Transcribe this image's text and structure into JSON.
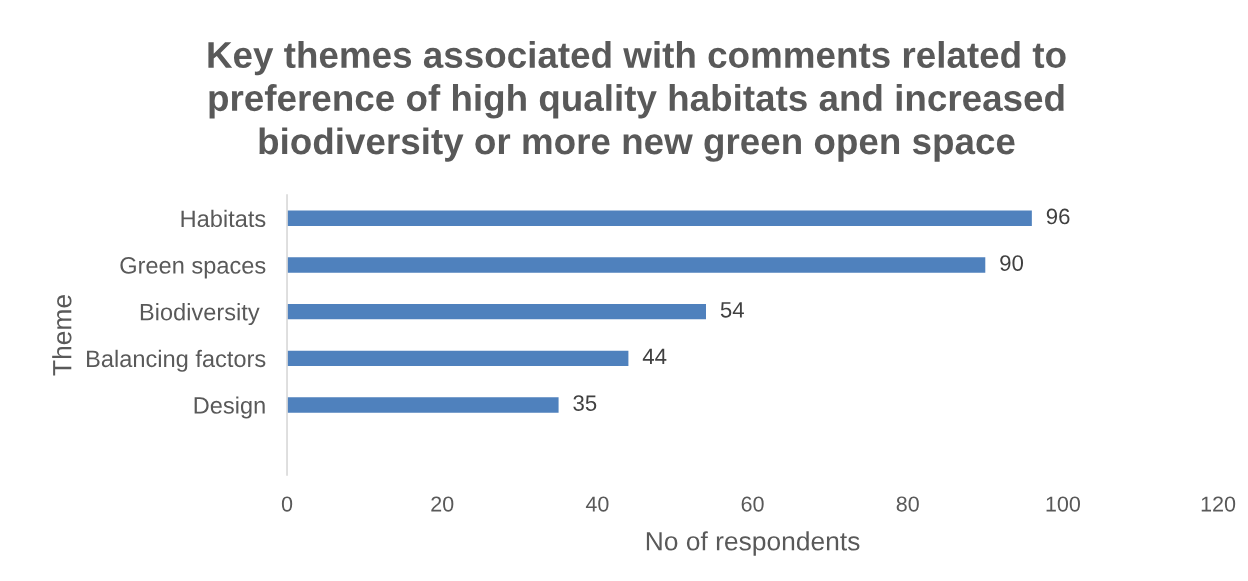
{
  "chart_data": {
    "type": "bar",
    "orientation": "horizontal",
    "title": "Key themes associated with comments related to\npreference of high quality habitats and increased\nbiodiversity or more new green open space",
    "xlabel": "No of respondents",
    "ylabel": "Theme",
    "categories": [
      "Habitats",
      "Green spaces",
      "Biodiversity ",
      "Balancing factors",
      "Design",
      null
    ],
    "values": [
      96,
      90,
      54,
      44,
      35,
      null
    ],
    "color": "#4f81bd",
    "xlim": [
      0,
      120
    ],
    "xticks": [
      0,
      20,
      40,
      60,
      80,
      100,
      120
    ],
    "data_labels": true
  }
}
